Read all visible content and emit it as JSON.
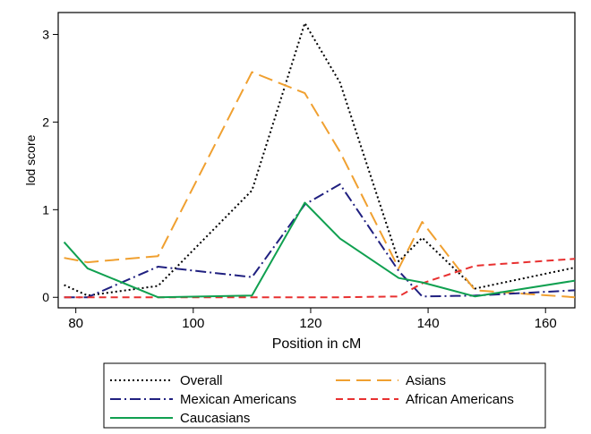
{
  "chart_data": {
    "type": "line",
    "title": "",
    "xlabel": "Position in cM",
    "ylabel": "lod score",
    "xlim": [
      77,
      165
    ],
    "ylim": [
      -0.12,
      3.25
    ],
    "xticks": [
      80,
      100,
      120,
      140,
      160
    ],
    "yticks": [
      0,
      1,
      2,
      3
    ],
    "grid": false,
    "legend_position": "bottom",
    "series": [
      {
        "name": "Overall",
        "color": "#000000",
        "dash": "dotted",
        "x": [
          78,
          82,
          94,
          110,
          119,
          125,
          135,
          139,
          148,
          165
        ],
        "y": [
          0.14,
          0.02,
          0.13,
          1.22,
          3.13,
          2.45,
          0.41,
          0.68,
          0.1,
          0.34
        ]
      },
      {
        "name": "Asians",
        "color": "#F0A030",
        "dash": "long-dash",
        "x": [
          78,
          82,
          94,
          110,
          119,
          125,
          135,
          139,
          148,
          165
        ],
        "y": [
          0.45,
          0.4,
          0.47,
          2.57,
          2.33,
          1.66,
          0.33,
          0.86,
          0.08,
          0.0
        ]
      },
      {
        "name": "Mexican Americans",
        "color": "#202080",
        "dash": "dash-dot",
        "x": [
          78,
          82,
          94,
          110,
          119,
          125,
          135,
          139,
          148,
          165
        ],
        "y": [
          0.0,
          0.0,
          0.35,
          0.23,
          1.06,
          1.29,
          0.3,
          0.01,
          0.02,
          0.08
        ]
      },
      {
        "name": "African Americans",
        "color": "#E83030",
        "dash": "dashed",
        "x": [
          78,
          82,
          94,
          110,
          119,
          125,
          135,
          139,
          148,
          165
        ],
        "y": [
          0.0,
          0.0,
          0.0,
          0.0,
          0.0,
          0.0,
          0.01,
          0.16,
          0.36,
          0.44
        ]
      },
      {
        "name": "Caucasians",
        "color": "#10A050",
        "dash": "solid",
        "x": [
          78,
          82,
          94,
          110,
          119,
          125,
          135,
          139,
          148,
          165
        ],
        "y": [
          0.63,
          0.33,
          0.0,
          0.02,
          1.08,
          0.67,
          0.22,
          0.17,
          0.01,
          0.19
        ]
      }
    ]
  }
}
